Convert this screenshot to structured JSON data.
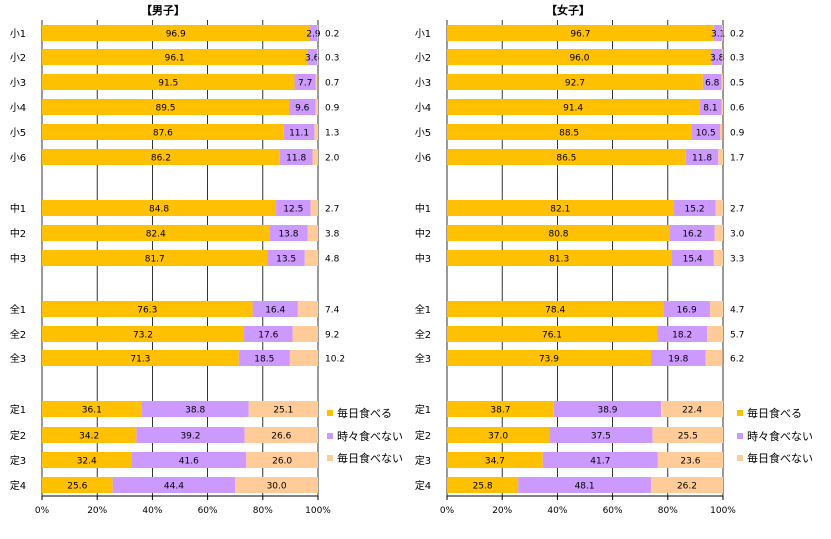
{
  "colors": {
    "daily": "#FFC000",
    "sometimes": "#CC99FF",
    "not_daily": "#FFCC99",
    "grid": "#000000",
    "background": "#FFFFFF"
  },
  "chart_data": [
    {
      "type": "bar",
      "stacked": true,
      "orientation": "horizontal",
      "title": "【男子】",
      "categories": [
        "小1",
        "小2",
        "小3",
        "小4",
        "小5",
        "小6",
        "中1",
        "中2",
        "中3",
        "全1",
        "全2",
        "全3",
        "定1",
        "定2",
        "定3",
        "定4"
      ],
      "group_breaks_after": [
        "小6",
        "中3",
        "全3"
      ],
      "series": [
        {
          "name": "毎日食べる",
          "values": [
            96.9,
            96.1,
            91.5,
            89.5,
            87.6,
            86.2,
            84.8,
            82.4,
            81.7,
            76.3,
            73.2,
            71.3,
            36.1,
            34.2,
            32.4,
            25.6
          ]
        },
        {
          "name": "時々食べない",
          "values": [
            2.9,
            3.6,
            7.7,
            9.6,
            11.1,
            11.8,
            12.5,
            13.8,
            13.5,
            16.4,
            17.6,
            18.5,
            38.8,
            39.2,
            41.6,
            44.4
          ]
        },
        {
          "name": "毎日食べない",
          "values": [
            0.2,
            0.3,
            0.7,
            0.9,
            1.3,
            2.0,
            2.7,
            3.8,
            4.8,
            7.4,
            9.2,
            10.2,
            25.1,
            26.6,
            26.0,
            30.0
          ]
        }
      ],
      "x_tick_labels": [
        "0%",
        "20%",
        "40%",
        "60%",
        "80%",
        "100%"
      ],
      "xlim": [
        0,
        100
      ],
      "grid": true,
      "legend": {
        "placement": "right-bottom",
        "entries": [
          "毎日食べる",
          "時々食べない",
          "毎日食べない"
        ]
      }
    },
    {
      "type": "bar",
      "stacked": true,
      "orientation": "horizontal",
      "title": "【女子】",
      "categories": [
        "小1",
        "小2",
        "小3",
        "小4",
        "小5",
        "小6",
        "中1",
        "中2",
        "中3",
        "全1",
        "全2",
        "全3",
        "定1",
        "定2",
        "定3",
        "定4"
      ],
      "group_breaks_after": [
        "小6",
        "中3",
        "全3"
      ],
      "series": [
        {
          "name": "毎日食べる",
          "values": [
            96.7,
            96.0,
            92.7,
            91.4,
            88.5,
            86.5,
            82.1,
            80.8,
            81.3,
            78.4,
            76.1,
            73.9,
            38.7,
            37.0,
            34.7,
            25.8
          ]
        },
        {
          "name": "時々食べない",
          "values": [
            3.1,
            3.8,
            6.8,
            8.1,
            10.5,
            11.8,
            15.2,
            16.2,
            15.4,
            16.9,
            18.2,
            19.8,
            38.9,
            37.5,
            41.7,
            48.1
          ]
        },
        {
          "name": "毎日食べない",
          "values": [
            0.2,
            0.3,
            0.5,
            0.6,
            0.9,
            1.7,
            2.7,
            3.0,
            3.3,
            4.7,
            5.7,
            6.2,
            22.4,
            25.5,
            23.6,
            26.2
          ]
        }
      ],
      "x_tick_labels": [
        "0%",
        "20%",
        "40%",
        "60%",
        "80%",
        "100%"
      ],
      "xlim": [
        0,
        100
      ],
      "grid": true,
      "legend": {
        "placement": "right-bottom",
        "entries": [
          "毎日食べる",
          "時々食べない",
          "毎日食べない"
        ]
      }
    }
  ]
}
